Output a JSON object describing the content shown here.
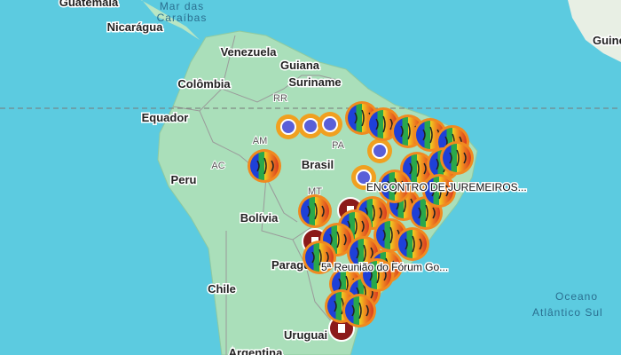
{
  "map": {
    "places": {
      "guatemala": "Guatemala",
      "sea_line1": "Mar das",
      "sea_line2": "Caraíbas",
      "nicaragua": "Nicarágua",
      "venezuela": "Venezuela",
      "guiana": "Guiana",
      "suriname": "Suriname",
      "colombia": "Colômbia",
      "rr": "RR",
      "equador": "Equador",
      "am": "AM",
      "pa": "PA",
      "brasil": "Brasil",
      "ac": "AC",
      "peru": "Peru",
      "mt": "MT",
      "bolivia": "Bolívia",
      "paraguai": "Paraguai",
      "chile": "Chile",
      "uruguai": "Uruguai",
      "argentina": "Argentina",
      "ocean_line1": "Oceano",
      "ocean_line2": "Atlântico Sul",
      "guine": "Guiné"
    },
    "callouts": [
      "ENCONTRO DE JUREMEIROS...",
      "5ª Reunião do Fórum Go..."
    ]
  }
}
